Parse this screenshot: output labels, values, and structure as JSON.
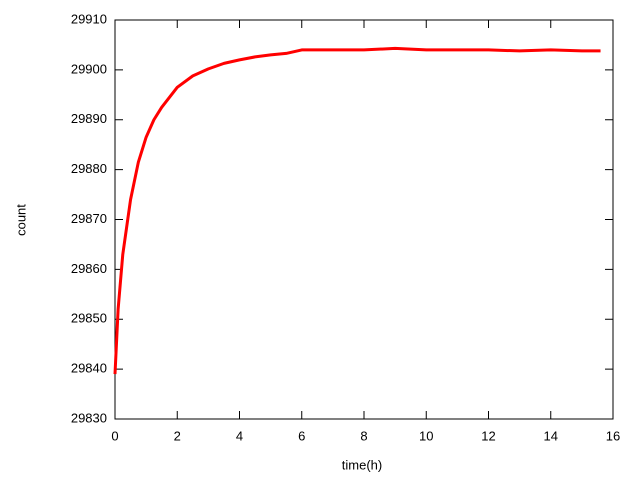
{
  "chart_data": {
    "type": "line",
    "x_label": "time(h)",
    "y_label": "count",
    "x": [
      0,
      0.1,
      0.25,
      0.5,
      0.75,
      1,
      1.25,
      1.5,
      2,
      2.5,
      3,
      3.5,
      4,
      4.5,
      5,
      5.5,
      6,
      7,
      8,
      9,
      10,
      11,
      12,
      13,
      14,
      15,
      15.6
    ],
    "series": [
      {
        "color": "#ff0000",
        "values": [
          29839,
          29852,
          29863,
          29874,
          29881.5,
          29886.5,
          29890,
          29892.5,
          29896.5,
          29898.8,
          29900.2,
          29901.3,
          29902,
          29902.6,
          29903,
          29903.3,
          29904,
          29904,
          29904,
          29904.3,
          29904,
          29904,
          29904,
          29903.8,
          29904,
          29903.8,
          29903.8
        ]
      }
    ],
    "xlim": [
      0,
      16
    ],
    "xticks": [
      0,
      2,
      4,
      6,
      8,
      10,
      12,
      14,
      16
    ],
    "ylim": [
      29830,
      29910
    ],
    "yticks": [
      29830,
      29840,
      29850,
      29860,
      29870,
      29880,
      29890,
      29900,
      29910
    ]
  }
}
